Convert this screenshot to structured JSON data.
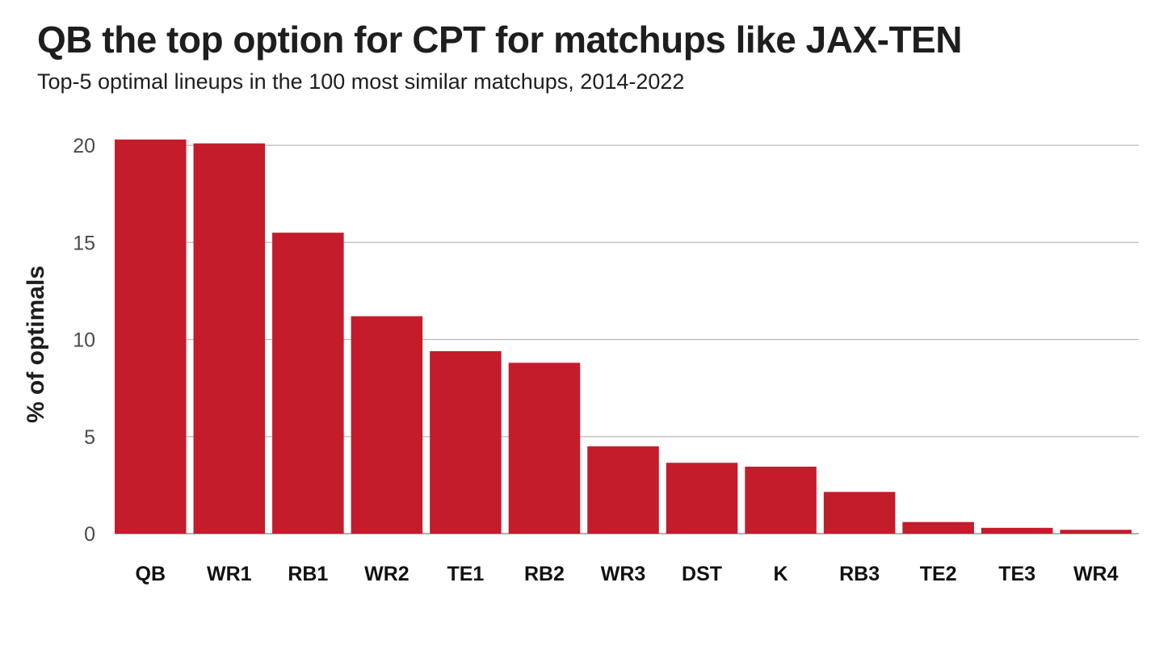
{
  "chart_data": {
    "type": "bar",
    "title": "QB the top option for CPT for matchups like JAX-TEN",
    "subtitle": "Top-5 optimal lineups in the 100 most similar matchups, 2014-2022",
    "xlabel": "",
    "ylabel": "% of optimals",
    "categories": [
      "QB",
      "WR1",
      "RB1",
      "WR2",
      "TE1",
      "RB2",
      "WR3",
      "DST",
      "K",
      "RB3",
      "TE2",
      "TE3",
      "WR4"
    ],
    "values": [
      20.3,
      20.1,
      15.5,
      11.2,
      9.4,
      8.8,
      4.5,
      3.65,
      3.45,
      2.15,
      0.6,
      0.3,
      0.2
    ],
    "ylim": [
      0,
      20
    ],
    "yticks": [
      0,
      5,
      10,
      15,
      20
    ],
    "grid": true,
    "legend": "none",
    "colors": {
      "bar": "#c41c2b"
    }
  }
}
